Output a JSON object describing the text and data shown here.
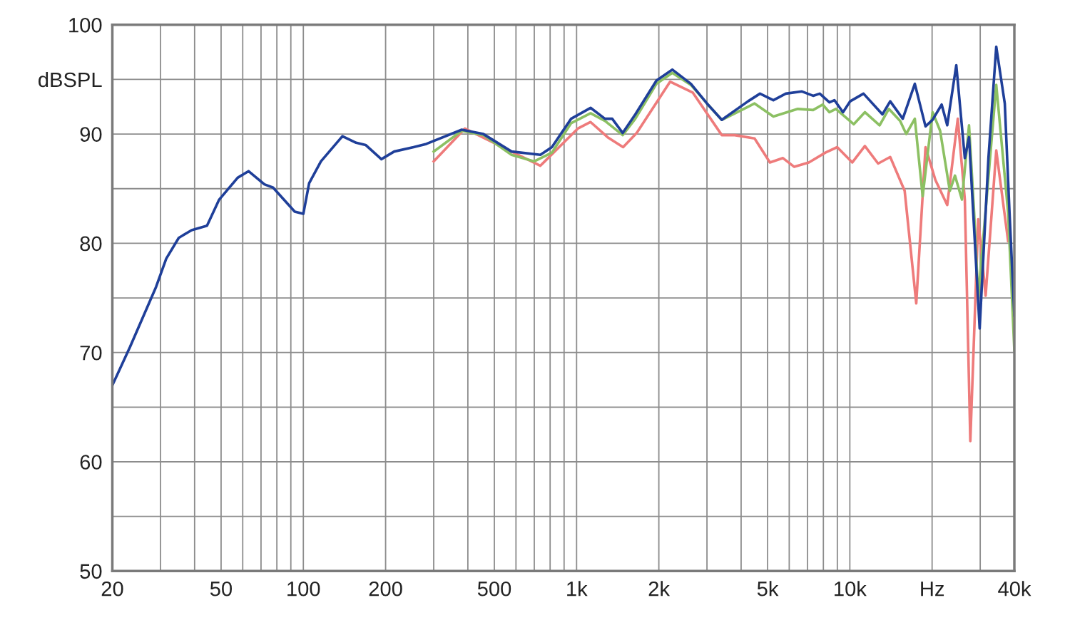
{
  "chart_data": {
    "type": "line",
    "log": "x",
    "grid": true,
    "marker": "none",
    "line_style": "solid",
    "xlim": [
      20,
      40000
    ],
    "ylim": [
      50,
      100
    ],
    "xticks": [
      20,
      {
        "value": 30,
        "label": null
      },
      {
        "value": 40,
        "label": null
      },
      50,
      {
        "value": 60,
        "label": null
      },
      {
        "value": 70,
        "label": null
      },
      {
        "value": 80,
        "label": null
      },
      {
        "value": 90,
        "label": null
      },
      100,
      200,
      {
        "value": 300,
        "label": null
      },
      {
        "value": 400,
        "label": null
      },
      500,
      {
        "value": 600,
        "label": null
      },
      {
        "value": 700,
        "label": null
      },
      {
        "value": 800,
        "label": null
      },
      {
        "value": 900,
        "label": null
      },
      {
        "value": 1000,
        "label": "1k"
      },
      {
        "value": 2000,
        "label": "2k"
      },
      {
        "value": 3000,
        "label": null
      },
      {
        "value": 4000,
        "label": null
      },
      {
        "value": 5000,
        "label": "5k"
      },
      {
        "value": 6000,
        "label": null
      },
      {
        "value": 7000,
        "label": null
      },
      {
        "value": 8000,
        "label": null
      },
      {
        "value": 9000,
        "label": null
      },
      {
        "value": 10000,
        "label": "10k"
      },
      {
        "value": 20000,
        "label": "Hz"
      },
      {
        "value": 30000,
        "label": null
      },
      {
        "value": 40000,
        "label": "40k"
      }
    ],
    "yticks": [
      50,
      {
        "value": 55,
        "label": null
      },
      60,
      {
        "value": 65,
        "label": null
      },
      70,
      {
        "value": 75,
        "label": null
      },
      80,
      {
        "value": 85,
        "label": null
      },
      90,
      {
        "value": 95,
        "label": "dBSPL"
      },
      100
    ],
    "series": [
      {
        "color": "#ee7b7b",
        "x": [
          300,
          390,
          737,
          1010,
          1125,
          1300,
          1480,
          1660,
          2200,
          2660,
          3400,
          3790,
          4480,
          5100,
          5690,
          6260,
          7080,
          8140,
          8990,
          10210,
          11350,
          12690,
          14050,
          15870,
          17500,
          18920,
          20560,
          22720,
          24830,
          26350,
          27600,
          29500,
          31400,
          34340,
          37950
        ],
        "values": [
          87.5,
          90.5,
          87.1,
          90.5,
          91.1,
          89.7,
          88.8,
          90.1,
          94.8,
          93.8,
          89.9,
          89.9,
          89.6,
          87.4,
          87.8,
          87.0,
          87.4,
          88.3,
          88.8,
          87.4,
          88.9,
          87.3,
          87.9,
          84.8,
          74.5,
          88.8,
          85.8,
          83.5,
          91.4,
          84.0,
          61.9,
          82.2,
          75.2,
          88.5,
          80.2
        ]
      },
      {
        "color": "#8cc063",
        "x": [
          300,
          380,
          456,
          578,
          700,
          812,
          955,
          1125,
          1270,
          1475,
          1640,
          1960,
          2240,
          2620,
          3000,
          3400,
          4240,
          4480,
          5250,
          6450,
          7340,
          7950,
          8420,
          8890,
          10340,
          11350,
          12850,
          13890,
          15280,
          16080,
          17290,
          18470,
          20080,
          21400,
          23220,
          24250,
          25720,
          27300,
          28500,
          29500,
          34340,
          37950,
          40000
        ],
        "values": [
          88.4,
          90.3,
          89.9,
          88.1,
          87.5,
          88.3,
          91.0,
          91.9,
          91.2,
          89.9,
          91.4,
          94.6,
          95.6,
          94.5,
          92.8,
          91.3,
          92.5,
          92.8,
          91.6,
          92.3,
          92.2,
          92.7,
          92.0,
          92.3,
          90.9,
          92.0,
          90.8,
          92.3,
          91.2,
          90.0,
          91.4,
          84.3,
          92.0,
          90.3,
          84.8,
          86.2,
          84.0,
          90.8,
          82.8,
          75.0,
          94.5,
          82.8,
          70.2
        ]
      },
      {
        "color": "#1f3f99",
        "x": [
          20,
          23.2,
          28.9,
          31.5,
          35.0,
          39.0,
          44.4,
          49.2,
          57.5,
          63.0,
          72,
          77.5,
          93,
          100,
          105,
          116,
          139,
          156,
          169,
          193,
          215,
          253,
          282,
          380,
          456,
          578,
          737,
          812,
          955,
          1125,
          1270,
          1350,
          1475,
          1640,
          1960,
          2240,
          2620,
          3000,
          3400,
          4240,
          4690,
          5250,
          5830,
          6680,
          7340,
          7760,
          8420,
          8780,
          9440,
          10030,
          11220,
          13160,
          14050,
          15620,
          17290,
          18920,
          20080,
          21680,
          22720,
          24520,
          26350,
          27300,
          29860,
          32150,
          34340,
          36900,
          38400,
          40000
        ],
        "values": [
          67.0,
          70.5,
          76.0,
          78.6,
          80.5,
          81.2,
          81.6,
          84.0,
          86.0,
          86.6,
          85.4,
          85.1,
          82.9,
          82.7,
          85.5,
          87.5,
          89.8,
          89.2,
          89.0,
          87.7,
          88.4,
          88.8,
          89.1,
          90.4,
          90.0,
          88.4,
          88.1,
          88.8,
          91.4,
          92.4,
          91.4,
          91.4,
          90.1,
          91.8,
          94.9,
          95.9,
          94.6,
          92.8,
          91.3,
          93.0,
          93.7,
          93.1,
          93.7,
          93.9,
          93.5,
          93.7,
          92.9,
          93.1,
          92.0,
          93.0,
          93.7,
          91.8,
          93.0,
          91.4,
          94.6,
          90.7,
          91.3,
          92.7,
          90.8,
          96.3,
          87.8,
          89.7,
          72.2,
          87.8,
          98.0,
          92.8,
          82.8,
          73.4
        ]
      }
    ]
  }
}
